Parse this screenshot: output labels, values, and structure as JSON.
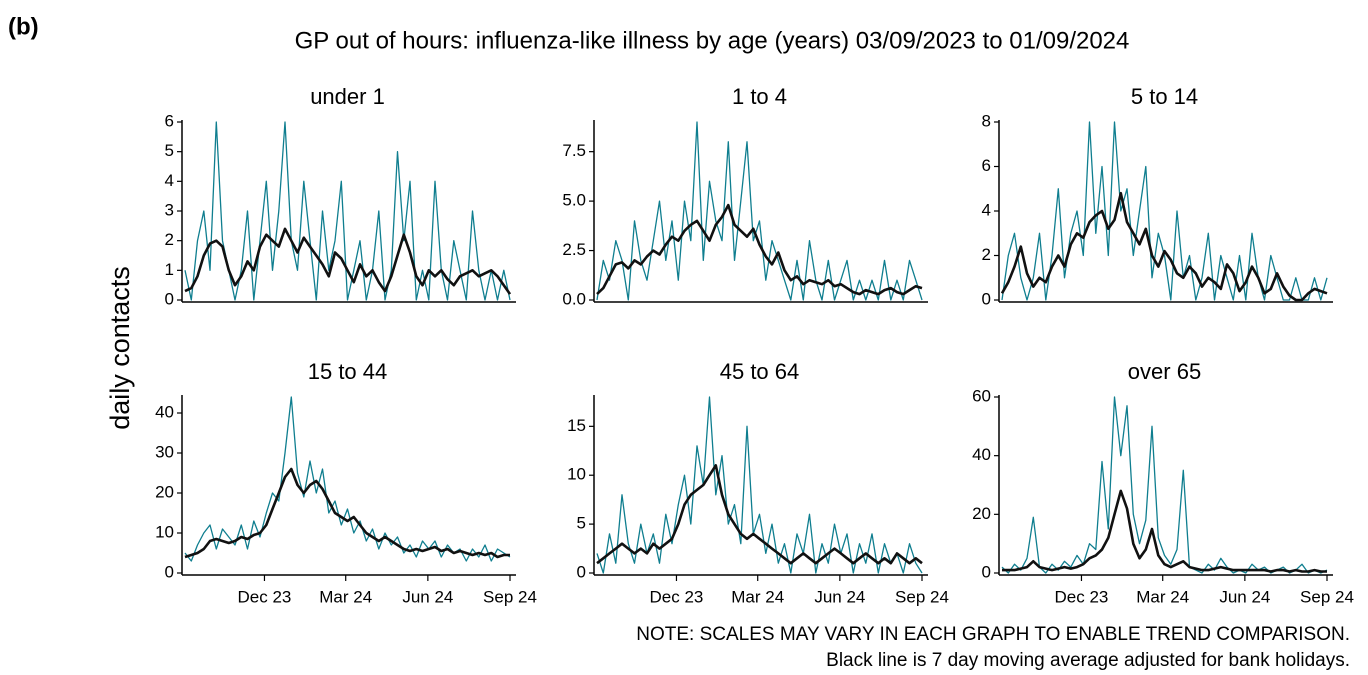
{
  "label": "(b)",
  "title": "GP out of hours: influenza-like illness by age (years) 03/09/2023 to 01/09/2024",
  "ylabel": "daily contacts",
  "notes": [
    "NOTE: SCALES MAY VARY IN EACH GRAPH TO ENABLE TREND COMPARISON.",
    "Black line is 7 day moving average adjusted for bank holidays."
  ],
  "chart_data": [
    {
      "type": "line",
      "title": "under 1",
      "x": [
        0,
        7,
        14,
        21,
        28,
        35,
        42,
        49,
        56,
        63,
        70,
        77,
        84,
        91,
        98,
        105,
        112,
        119,
        126,
        133,
        140,
        147,
        154,
        161,
        168,
        175,
        182,
        189,
        196,
        203,
        210,
        217,
        224,
        231,
        238,
        245,
        252,
        259,
        266,
        273,
        280,
        287,
        294,
        301,
        308,
        315,
        322,
        329,
        336,
        343,
        350,
        357,
        364
      ],
      "xlim": [
        0,
        364
      ],
      "ylim": [
        0,
        6
      ],
      "yticks": [
        0,
        1,
        2,
        3,
        4,
        5,
        6
      ],
      "series": [
        {
          "color": "#0f7e8f",
          "values": [
            1,
            0,
            2,
            3,
            1,
            6,
            2,
            1,
            0,
            1,
            3,
            0,
            2,
            4,
            1,
            3,
            6,
            2,
            1,
            4,
            2,
            0,
            3,
            1,
            2,
            4,
            0,
            1,
            2,
            0,
            1,
            3,
            0,
            1,
            5,
            2,
            4,
            0,
            1,
            0,
            4,
            1,
            0,
            2,
            1,
            0,
            3,
            1,
            0,
            1,
            0,
            1,
            0
          ]
        },
        {
          "color": "#111111",
          "values": [
            0.3,
            0.4,
            0.8,
            1.5,
            1.9,
            2.0,
            1.8,
            1.0,
            0.5,
            0.8,
            1.3,
            1.0,
            1.8,
            2.2,
            2.0,
            1.8,
            2.4,
            2.0,
            1.6,
            2.1,
            1.8,
            1.5,
            1.2,
            0.8,
            1.6,
            1.4,
            1.0,
            0.6,
            1.2,
            0.8,
            1.0,
            0.6,
            0.3,
            0.8,
            1.5,
            2.2,
            1.6,
            0.8,
            0.5,
            1.0,
            0.8,
            1.0,
            0.7,
            0.5,
            0.8,
            0.9,
            1.0,
            0.8,
            0.9,
            1.0,
            0.8,
            0.5,
            0.2
          ]
        }
      ]
    },
    {
      "type": "line",
      "title": "1 to 4",
      "x": [
        0,
        7,
        14,
        21,
        28,
        35,
        42,
        49,
        56,
        63,
        70,
        77,
        84,
        91,
        98,
        105,
        112,
        119,
        126,
        133,
        140,
        147,
        154,
        161,
        168,
        175,
        182,
        189,
        196,
        203,
        210,
        217,
        224,
        231,
        238,
        245,
        252,
        259,
        266,
        273,
        280,
        287,
        294,
        301,
        308,
        315,
        322,
        329,
        336,
        343,
        350,
        357,
        364
      ],
      "xlim": [
        0,
        364
      ],
      "ylim": [
        0,
        9
      ],
      "yticks": [
        {
          "value": 0,
          "label": "0.0"
        },
        2.5,
        {
          "value": 5,
          "label": "5.0"
        },
        7.5
      ],
      "series": [
        {
          "color": "#0f7e8f",
          "values": [
            0,
            2,
            1,
            3,
            2,
            0,
            4,
            2,
            1,
            3,
            5,
            2,
            4,
            1,
            5,
            3,
            9,
            2,
            6,
            4,
            3,
            8,
            2,
            5,
            8,
            3,
            4,
            1,
            3,
            2,
            1,
            0,
            2,
            0,
            3,
            1,
            0,
            2,
            0,
            1,
            2,
            0,
            1,
            0,
            1,
            0,
            2,
            0,
            1,
            0,
            2,
            1,
            0
          ]
        },
        {
          "color": "#111111",
          "values": [
            0.3,
            0.6,
            1.2,
            1.8,
            1.9,
            1.6,
            2.0,
            1.8,
            2.2,
            2.5,
            2.3,
            2.8,
            3.2,
            3.0,
            3.5,
            3.8,
            4.0,
            3.5,
            3.0,
            3.8,
            4.2,
            4.8,
            3.8,
            3.5,
            3.2,
            3.6,
            2.8,
            2.2,
            1.8,
            2.4,
            1.5,
            1.0,
            1.2,
            0.8,
            1.0,
            0.9,
            0.8,
            1.0,
            0.7,
            0.8,
            0.6,
            0.4,
            0.3,
            0.5,
            0.4,
            0.3,
            0.5,
            0.6,
            0.4,
            0.3,
            0.5,
            0.7,
            0.6
          ]
        }
      ]
    },
    {
      "type": "line",
      "title": "5 to 14",
      "x": [
        0,
        7,
        14,
        21,
        28,
        35,
        42,
        49,
        56,
        63,
        70,
        77,
        84,
        91,
        98,
        105,
        112,
        119,
        126,
        133,
        140,
        147,
        154,
        161,
        168,
        175,
        182,
        189,
        196,
        203,
        210,
        217,
        224,
        231,
        238,
        245,
        252,
        259,
        266,
        273,
        280,
        287,
        294,
        301,
        308,
        315,
        322,
        329,
        336,
        343,
        350,
        357,
        364
      ],
      "xlim": [
        0,
        364
      ],
      "ylim": [
        0,
        8
      ],
      "yticks": [
        0,
        2,
        4,
        6,
        8
      ],
      "series": [
        {
          "color": "#0f7e8f",
          "values": [
            0,
            2,
            3,
            1,
            0,
            1,
            3,
            0,
            2,
            5,
            1,
            3,
            4,
            2,
            8,
            3,
            6,
            2,
            8,
            4,
            5,
            2,
            4,
            6,
            1,
            3,
            2,
            0,
            4,
            1,
            2,
            0,
            1,
            3,
            0,
            2,
            1,
            0,
            2,
            0,
            3,
            1,
            0,
            2,
            1,
            0,
            0,
            1,
            0,
            0,
            1,
            0,
            1
          ]
        },
        {
          "color": "#111111",
          "values": [
            0.3,
            0.8,
            1.5,
            2.4,
            1.2,
            0.6,
            1.0,
            0.8,
            1.5,
            2.0,
            1.5,
            2.5,
            3.0,
            2.8,
            3.5,
            3.8,
            4.0,
            3.2,
            3.6,
            4.8,
            3.5,
            3.0,
            2.5,
            3.2,
            2.0,
            1.5,
            2.2,
            1.8,
            1.2,
            1.0,
            1.5,
            1.2,
            0.6,
            1.0,
            0.8,
            0.5,
            1.6,
            1.2,
            0.4,
            0.8,
            1.5,
            1.0,
            0.3,
            0.5,
            1.2,
            0.6,
            0.2,
            0.0,
            0.0,
            0.3,
            0.5,
            0.4,
            0.3
          ]
        }
      ]
    },
    {
      "type": "line",
      "title": "15 to 44",
      "x": [
        0,
        7,
        14,
        21,
        28,
        35,
        42,
        49,
        56,
        63,
        70,
        77,
        84,
        91,
        98,
        105,
        112,
        119,
        126,
        133,
        140,
        147,
        154,
        161,
        168,
        175,
        182,
        189,
        196,
        203,
        210,
        217,
        224,
        231,
        238,
        245,
        252,
        259,
        266,
        273,
        280,
        287,
        294,
        301,
        308,
        315,
        322,
        329,
        336,
        343,
        350,
        357,
        364
      ],
      "xlim": [
        0,
        364
      ],
      "ylim": [
        0,
        44
      ],
      "yticks": [
        0,
        10,
        20,
        30,
        40
      ],
      "xticks": [
        {
          "value": 89,
          "label": "Dec 23"
        },
        {
          "value": 180,
          "label": "Mar 24"
        },
        {
          "value": 272,
          "label": "Jun 24"
        },
        {
          "value": 364,
          "label": "Sep 24"
        }
      ],
      "series": [
        {
          "color": "#0f7e8f",
          "values": [
            5,
            3,
            7,
            10,
            12,
            6,
            11,
            9,
            7,
            12,
            6,
            13,
            9,
            15,
            20,
            18,
            30,
            44,
            25,
            19,
            28,
            20,
            26,
            15,
            18,
            12,
            16,
            10,
            13,
            8,
            11,
            6,
            10,
            7,
            9,
            5,
            7,
            4,
            8,
            6,
            8,
            4,
            7,
            5,
            6,
            3,
            6,
            4,
            7,
            3,
            6,
            5,
            4
          ]
        },
        {
          "color": "#111111",
          "values": [
            4,
            4.5,
            5,
            6,
            8,
            8.5,
            8,
            7.5,
            8,
            9,
            8.5,
            9.5,
            10,
            12,
            16,
            20,
            24,
            26,
            22,
            20,
            22,
            23,
            21,
            18,
            15,
            14,
            13,
            14,
            12,
            10,
            9,
            8,
            9,
            8,
            7,
            6,
            5.5,
            6,
            5.5,
            6,
            6.5,
            5.5,
            6,
            5,
            5.5,
            5,
            4.5,
            5,
            4.5,
            5,
            4,
            4.5,
            4.5
          ]
        }
      ]
    },
    {
      "type": "line",
      "title": "45 to 64",
      "x": [
        0,
        7,
        14,
        21,
        28,
        35,
        42,
        49,
        56,
        63,
        70,
        77,
        84,
        91,
        98,
        105,
        112,
        119,
        126,
        133,
        140,
        147,
        154,
        161,
        168,
        175,
        182,
        189,
        196,
        203,
        210,
        217,
        224,
        231,
        238,
        245,
        252,
        259,
        266,
        273,
        280,
        287,
        294,
        301,
        308,
        315,
        322,
        329,
        336,
        343,
        350,
        357,
        364
      ],
      "xlim": [
        0,
        364
      ],
      "ylim": [
        0,
        18
      ],
      "yticks": [
        0,
        5,
        10,
        15
      ],
      "xticks": [
        {
          "value": 89,
          "label": "Dec 23"
        },
        {
          "value": 180,
          "label": "Mar 24"
        },
        {
          "value": 272,
          "label": "Jun 24"
        },
        {
          "value": 364,
          "label": "Sep 24"
        }
      ],
      "series": [
        {
          "color": "#0f7e8f",
          "values": [
            2,
            0,
            4,
            1,
            8,
            3,
            1,
            5,
            2,
            4,
            1,
            6,
            3,
            7,
            10,
            5,
            13,
            9,
            18,
            8,
            12,
            5,
            7,
            3,
            15,
            4,
            6,
            2,
            5,
            1,
            3,
            0,
            4,
            2,
            6,
            0,
            3,
            1,
            5,
            2,
            4,
            0,
            3,
            1,
            4,
            0,
            3,
            1,
            2,
            0,
            3,
            1,
            0
          ]
        },
        {
          "color": "#111111",
          "values": [
            1,
            1.5,
            2,
            2.5,
            3,
            2.5,
            2,
            2.5,
            2,
            3,
            2.5,
            3,
            3.5,
            5,
            7,
            8,
            8.5,
            9,
            10,
            11,
            8,
            6,
            5,
            4,
            3.5,
            4,
            3.5,
            3,
            2.5,
            2,
            1.5,
            1,
            1.5,
            2,
            1.5,
            1,
            1.5,
            2,
            2.5,
            2,
            1.5,
            1,
            1.5,
            2,
            1.5,
            1,
            1.5,
            1,
            2,
            1.5,
            1,
            1.5,
            1
          ]
        }
      ]
    },
    {
      "type": "line",
      "title": "over 65",
      "x": [
        0,
        7,
        14,
        21,
        28,
        35,
        42,
        49,
        56,
        63,
        70,
        77,
        84,
        91,
        98,
        105,
        112,
        119,
        126,
        133,
        140,
        147,
        154,
        161,
        168,
        175,
        182,
        189,
        196,
        203,
        210,
        217,
        224,
        231,
        238,
        245,
        252,
        259,
        266,
        273,
        280,
        287,
        294,
        301,
        308,
        315,
        322,
        329,
        336,
        343,
        350,
        357,
        364
      ],
      "xlim": [
        0,
        364
      ],
      "ylim": [
        0,
        60
      ],
      "yticks": [
        0,
        20,
        40,
        60
      ],
      "xticks": [
        {
          "value": 89,
          "label": "Dec 23"
        },
        {
          "value": 180,
          "label": "Mar 24"
        },
        {
          "value": 272,
          "label": "Jun 24"
        },
        {
          "value": 364,
          "label": "Sep 24"
        }
      ],
      "series": [
        {
          "color": "#0f7e8f",
          "values": [
            2,
            0,
            3,
            1,
            5,
            19,
            2,
            0,
            3,
            1,
            4,
            2,
            6,
            3,
            10,
            8,
            38,
            15,
            60,
            40,
            57,
            20,
            10,
            18,
            50,
            12,
            6,
            3,
            8,
            35,
            2,
            1,
            0,
            3,
            1,
            5,
            2,
            0,
            1,
            0,
            3,
            1,
            2,
            0,
            1,
            2,
            0,
            1,
            3,
            0,
            1,
            0,
            1
          ]
        },
        {
          "color": "#111111",
          "values": [
            1,
            1,
            1,
            1.5,
            2,
            4,
            2,
            1.5,
            1,
            1.5,
            2,
            1.5,
            2,
            3,
            5,
            6,
            8,
            12,
            20,
            28,
            22,
            10,
            5,
            8,
            15,
            6,
            3,
            2,
            3,
            4,
            2,
            1.5,
            1,
            1,
            1.5,
            2,
            1.5,
            1,
            1,
            1,
            1,
            1,
            1,
            0.5,
            1,
            1,
            0.5,
            1,
            0.5,
            0.5,
            1,
            0.5,
            0.5
          ]
        }
      ]
    }
  ]
}
